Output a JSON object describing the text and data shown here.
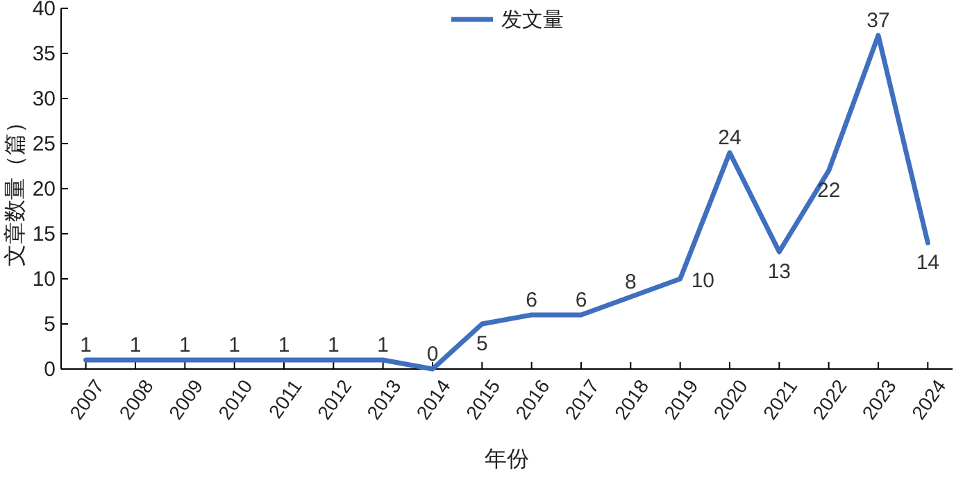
{
  "chart_data": {
    "type": "line",
    "xlabel": "年份",
    "ylabel": "文章数量（篇）",
    "categories": [
      "2007",
      "2008",
      "2009",
      "2010",
      "2011",
      "2012",
      "2013",
      "2014",
      "2015",
      "2016",
      "2017",
      "2018",
      "2019",
      "2020",
      "2021",
      "2022",
      "2023",
      "2024"
    ],
    "series": [
      {
        "name": "发文量",
        "color": "#3f6fbf",
        "values": [
          1,
          1,
          1,
          1,
          1,
          1,
          1,
          0,
          5,
          6,
          6,
          8,
          10,
          24,
          13,
          22,
          37,
          14
        ]
      }
    ],
    "ylim": [
      0,
      40
    ],
    "yticks": [
      0,
      5,
      10,
      15,
      20,
      25,
      30,
      35,
      40
    ],
    "data_labels": true,
    "legend": "top"
  }
}
